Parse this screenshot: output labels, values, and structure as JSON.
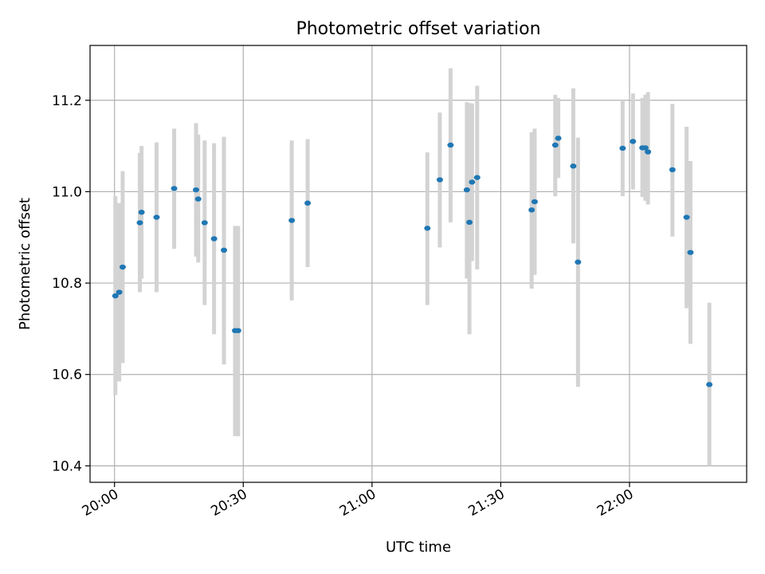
{
  "chart_data": {
    "type": "scatter",
    "title": "Photometric offset variation",
    "xlabel": "UTC time",
    "ylabel": "Photometric offset",
    "x_unit": "minutes since 20:00 UTC",
    "xlim": [
      -5.7,
      147.3
    ],
    "ylim": [
      10.364,
      11.32
    ],
    "grid": true,
    "x_ticks": [
      {
        "value": 0,
        "label": "20:00"
      },
      {
        "value": 30,
        "label": "20:30"
      },
      {
        "value": 60,
        "label": "21:00"
      },
      {
        "value": 90,
        "label": "21:30"
      },
      {
        "value": 120,
        "label": "22:00"
      }
    ],
    "y_ticks": [
      {
        "value": 10.4,
        "label": "10.4"
      },
      {
        "value": 10.6,
        "label": "10.6"
      },
      {
        "value": 10.8,
        "label": "10.8"
      },
      {
        "value": 11.0,
        "label": "11.0"
      },
      {
        "value": 11.2,
        "label": "11.2"
      }
    ],
    "point_color": "#1f77b4",
    "errorbar_color": "#d3d3d3",
    "points": [
      {
        "x": 0.2,
        "y": 10.772,
        "ylo": 10.555,
        "yhi": 10.99
      },
      {
        "x": 1.1,
        "y": 10.78,
        "ylo": 10.585,
        "yhi": 10.975
      },
      {
        "x": 1.9,
        "y": 10.835,
        "ylo": 10.625,
        "yhi": 11.045
      },
      {
        "x": 5.9,
        "y": 10.932,
        "ylo": 10.78,
        "yhi": 11.085
      },
      {
        "x": 6.3,
        "y": 10.955,
        "ylo": 10.81,
        "yhi": 11.1
      },
      {
        "x": 9.8,
        "y": 10.944,
        "ylo": 10.78,
        "yhi": 11.108
      },
      {
        "x": 13.9,
        "y": 11.007,
        "ylo": 10.875,
        "yhi": 11.138
      },
      {
        "x": 19.0,
        "y": 11.004,
        "ylo": 10.858,
        "yhi": 11.15
      },
      {
        "x": 19.5,
        "y": 10.984,
        "ylo": 10.845,
        "yhi": 11.125
      },
      {
        "x": 21.0,
        "y": 10.932,
        "ylo": 10.752,
        "yhi": 11.112
      },
      {
        "x": 23.2,
        "y": 10.897,
        "ylo": 10.688,
        "yhi": 11.106
      },
      {
        "x": 25.5,
        "y": 10.872,
        "ylo": 10.622,
        "yhi": 11.12
      },
      {
        "x": 28.1,
        "y": 10.696,
        "ylo": 10.465,
        "yhi": 10.925
      },
      {
        "x": 28.8,
        "y": 10.696,
        "ylo": 10.465,
        "yhi": 10.925
      },
      {
        "x": 41.3,
        "y": 10.937,
        "ylo": 10.762,
        "yhi": 11.112
      },
      {
        "x": 45.0,
        "y": 10.975,
        "ylo": 10.835,
        "yhi": 11.115
      },
      {
        "x": 72.9,
        "y": 10.92,
        "ylo": 10.752,
        "yhi": 11.086
      },
      {
        "x": 75.8,
        "y": 11.026,
        "ylo": 10.878,
        "yhi": 11.173
      },
      {
        "x": 78.3,
        "y": 11.102,
        "ylo": 10.933,
        "yhi": 11.27
      },
      {
        "x": 82.1,
        "y": 11.004,
        "ylo": 10.81,
        "yhi": 11.196
      },
      {
        "x": 82.7,
        "y": 10.933,
        "ylo": 10.688,
        "yhi": 11.194
      },
      {
        "x": 83.3,
        "y": 11.021,
        "ylo": 10.848,
        "yhi": 11.193
      },
      {
        "x": 84.5,
        "y": 11.031,
        "ylo": 10.83,
        "yhi": 11.232
      },
      {
        "x": 97.2,
        "y": 10.96,
        "ylo": 10.788,
        "yhi": 11.13
      },
      {
        "x": 97.9,
        "y": 10.978,
        "ylo": 10.818,
        "yhi": 11.138
      },
      {
        "x": 102.7,
        "y": 11.102,
        "ylo": 10.99,
        "yhi": 11.212
      },
      {
        "x": 103.4,
        "y": 11.117,
        "ylo": 11.03,
        "yhi": 11.205
      },
      {
        "x": 106.9,
        "y": 11.056,
        "ylo": 10.887,
        "yhi": 11.226
      },
      {
        "x": 108.0,
        "y": 10.846,
        "ylo": 10.573,
        "yhi": 11.118
      },
      {
        "x": 118.4,
        "y": 11.095,
        "ylo": 10.99,
        "yhi": 11.198
      },
      {
        "x": 120.8,
        "y": 11.11,
        "ylo": 11.005,
        "yhi": 11.215
      },
      {
        "x": 123.0,
        "y": 11.096,
        "ylo": 10.988,
        "yhi": 11.205
      },
      {
        "x": 123.7,
        "y": 11.096,
        "ylo": 10.98,
        "yhi": 11.212
      },
      {
        "x": 124.3,
        "y": 11.087,
        "ylo": 10.972,
        "yhi": 11.218
      },
      {
        "x": 130.0,
        "y": 11.048,
        "ylo": 10.902,
        "yhi": 11.192
      },
      {
        "x": 133.3,
        "y": 10.944,
        "ylo": 10.745,
        "yhi": 11.142
      },
      {
        "x": 134.2,
        "y": 10.867,
        "ylo": 10.667,
        "yhi": 11.067
      },
      {
        "x": 138.6,
        "y": 10.578,
        "ylo": 10.4,
        "yhi": 10.757
      }
    ]
  }
}
